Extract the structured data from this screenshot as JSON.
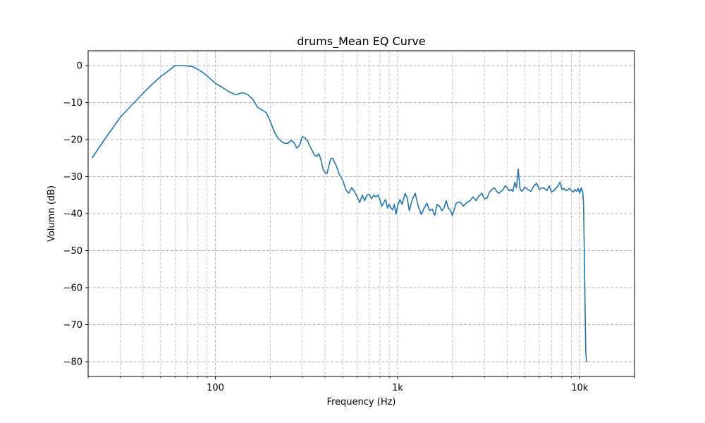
{
  "chart_data": {
    "type": "line",
    "title": "drums_Mean EQ Curve",
    "xlabel": "Frequency (Hz)",
    "ylabel": "Volumn (dB)",
    "xscale": "log",
    "xlim": [
      20,
      20000
    ],
    "ylim": [
      -84,
      4
    ],
    "grid": true,
    "x_ticks": [
      {
        "value": 100,
        "label": "100"
      },
      {
        "value": 1000,
        "label": "1k"
      },
      {
        "value": 10000,
        "label": "10k"
      }
    ],
    "y_ticks": [
      {
        "value": 0,
        "label": "0"
      },
      {
        "value": -10,
        "label": "−10"
      },
      {
        "value": -20,
        "label": "−20"
      },
      {
        "value": -30,
        "label": "−30"
      },
      {
        "value": -40,
        "label": "−40"
      },
      {
        "value": -50,
        "label": "−50"
      },
      {
        "value": -60,
        "label": "−60"
      },
      {
        "value": -70,
        "label": "−70"
      },
      {
        "value": -80,
        "label": "−80"
      }
    ],
    "series": [
      {
        "color": "#1f77b4",
        "x": [
          21,
          25,
          30,
          35,
          40,
          45,
          50,
          55,
          60,
          65,
          70,
          75,
          80,
          85,
          90,
          95,
          100,
          110,
          120,
          130,
          140,
          150,
          160,
          170,
          180,
          190,
          200,
          210,
          220,
          230,
          240,
          250,
          260,
          270,
          280,
          290,
          300,
          310,
          320,
          330,
          340,
          350,
          360,
          370,
          380,
          390,
          400,
          410,
          420,
          430,
          440,
          450,
          460,
          480,
          500,
          520,
          540,
          560,
          580,
          600,
          620,
          640,
          660,
          680,
          700,
          720,
          740,
          760,
          780,
          800,
          820,
          840,
          860,
          880,
          900,
          920,
          940,
          960,
          980,
          1000,
          1030,
          1060,
          1100,
          1130,
          1160,
          1200,
          1250,
          1300,
          1350,
          1400,
          1450,
          1500,
          1550,
          1600,
          1650,
          1700,
          1750,
          1800,
          1850,
          1900,
          1950,
          2000,
          2100,
          2200,
          2300,
          2400,
          2500,
          2600,
          2700,
          2800,
          2900,
          3000,
          3100,
          3200,
          3300,
          3400,
          3500,
          3600,
          3700,
          3800,
          3900,
          4000,
          4100,
          4200,
          4300,
          4400,
          4500,
          4600,
          4700,
          4800,
          4900,
          5000,
          5200,
          5400,
          5600,
          5800,
          6000,
          6200,
          6400,
          6600,
          6800,
          7000,
          7200,
          7400,
          7600,
          7800,
          8000,
          8200,
          8400,
          8600,
          8800,
          9000,
          9200,
          9400,
          9600,
          9800,
          10000,
          10200,
          10400,
          10500,
          10600,
          10700,
          10800,
          10900,
          11000
        ],
        "y": [
          -25,
          -19.5,
          -14,
          -10.5,
          -7.5,
          -5,
          -3,
          -1.5,
          0,
          0,
          -0.1,
          -0.3,
          -1,
          -1.8,
          -2.8,
          -3.8,
          -4.8,
          -6,
          -7.2,
          -7.9,
          -7.3,
          -7.8,
          -9,
          -11.2,
          -12,
          -12.7,
          -15,
          -17.8,
          -19.5,
          -20.5,
          -21,
          -21,
          -20.2,
          -20.8,
          -22.3,
          -21.5,
          -19.2,
          -19.5,
          -20.3,
          -21.8,
          -23,
          -24.2,
          -24.5,
          -23.8,
          -25.5,
          -28,
          -29,
          -29.2,
          -27,
          -25.2,
          -25,
          -26,
          -27,
          -29.5,
          -31,
          -33.5,
          -34.5,
          -33,
          -34,
          -35.5,
          -37,
          -35,
          -36.5,
          -35,
          -34.8,
          -36,
          -35,
          -35.5,
          -35,
          -36.2,
          -38,
          -37,
          -36.2,
          -38.5,
          -37.5,
          -38.5,
          -39,
          -37.5,
          -40.2,
          -38,
          -36.2,
          -37.5,
          -34.5,
          -35.8,
          -39.2,
          -36.5,
          -34.5,
          -38,
          -40.2,
          -38.5,
          -37.2,
          -39.2,
          -38.8,
          -40.5,
          -37.5,
          -38,
          -39.2,
          -38.5,
          -36.5,
          -38.5,
          -39,
          -40.5,
          -37.2,
          -36.8,
          -38,
          -37,
          -36.5,
          -35.5,
          -36.5,
          -35.2,
          -34.5,
          -36,
          -35.8,
          -34.2,
          -33.5,
          -33,
          -34,
          -34.5,
          -34,
          -33.5,
          -32.5,
          -33,
          -33.8,
          -33.5,
          -34,
          -31.5,
          -33,
          -28,
          -33.2,
          -34,
          -33.5,
          -32.8,
          -33.5,
          -34,
          -32.5,
          -31.8,
          -33.5,
          -33,
          -33.2,
          -33.8,
          -32.5,
          -34.2,
          -33.8,
          -33.2,
          -32.5,
          -31.5,
          -33.5,
          -33.2,
          -33.8,
          -33.5,
          -33.2,
          -33.8,
          -34.2,
          -33.5,
          -34,
          -33.2,
          -34.5,
          -33,
          -34.2,
          -37.5,
          -50,
          -65,
          -77,
          -80,
          -80
        ]
      }
    ]
  }
}
